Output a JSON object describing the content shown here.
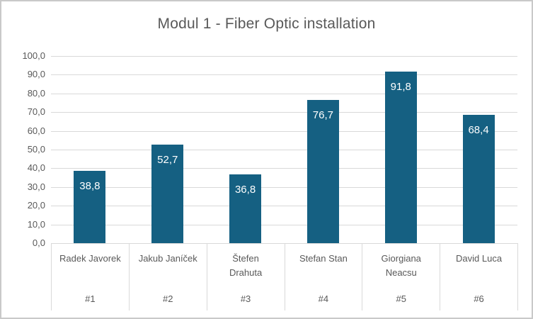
{
  "chart_data": {
    "type": "bar",
    "title": "Modul 1 - Fiber Optic installation",
    "categories": [
      "Radek Javorek",
      "Jakub Janíček",
      "Štefen Drahuta",
      "Stefan Stan",
      "Giorgiana Neacsu",
      "David Luca"
    ],
    "category_tags": [
      "#1",
      "#2",
      "#3",
      "#4",
      "#5",
      "#6"
    ],
    "category_label_lines": [
      [
        "Radek Javorek"
      ],
      [
        "Jakub Janíček"
      ],
      [
        "Štefen",
        "Drahuta"
      ],
      [
        "Stefan Stan"
      ],
      [
        "Giorgiana",
        "Neacsu"
      ],
      [
        "David Luca"
      ]
    ],
    "values": [
      38.8,
      52.7,
      36.8,
      76.7,
      91.8,
      68.4
    ],
    "value_labels": [
      "38,8",
      "52,7",
      "36,8",
      "76,7",
      "91,8",
      "68,4"
    ],
    "ylim": [
      0,
      100
    ],
    "y_step": 10,
    "y_tick_labels": [
      "0,0",
      "10,0",
      "20,0",
      "30,0",
      "40,0",
      "50,0",
      "60,0",
      "70,0",
      "80,0",
      "90,0",
      "100,0"
    ],
    "xlabel": "",
    "ylabel": "",
    "grid": true,
    "legend": false,
    "number_format": "decimal-comma",
    "colors": {
      "bar": "#156082",
      "gridline": "#d9d9d9",
      "axis": "#d9d9d9",
      "divider": "#d9d9d9",
      "text": "#595959",
      "value_label": "#ffffff",
      "frame_border": "#c9c9c9",
      "background": "#ffffff"
    }
  }
}
